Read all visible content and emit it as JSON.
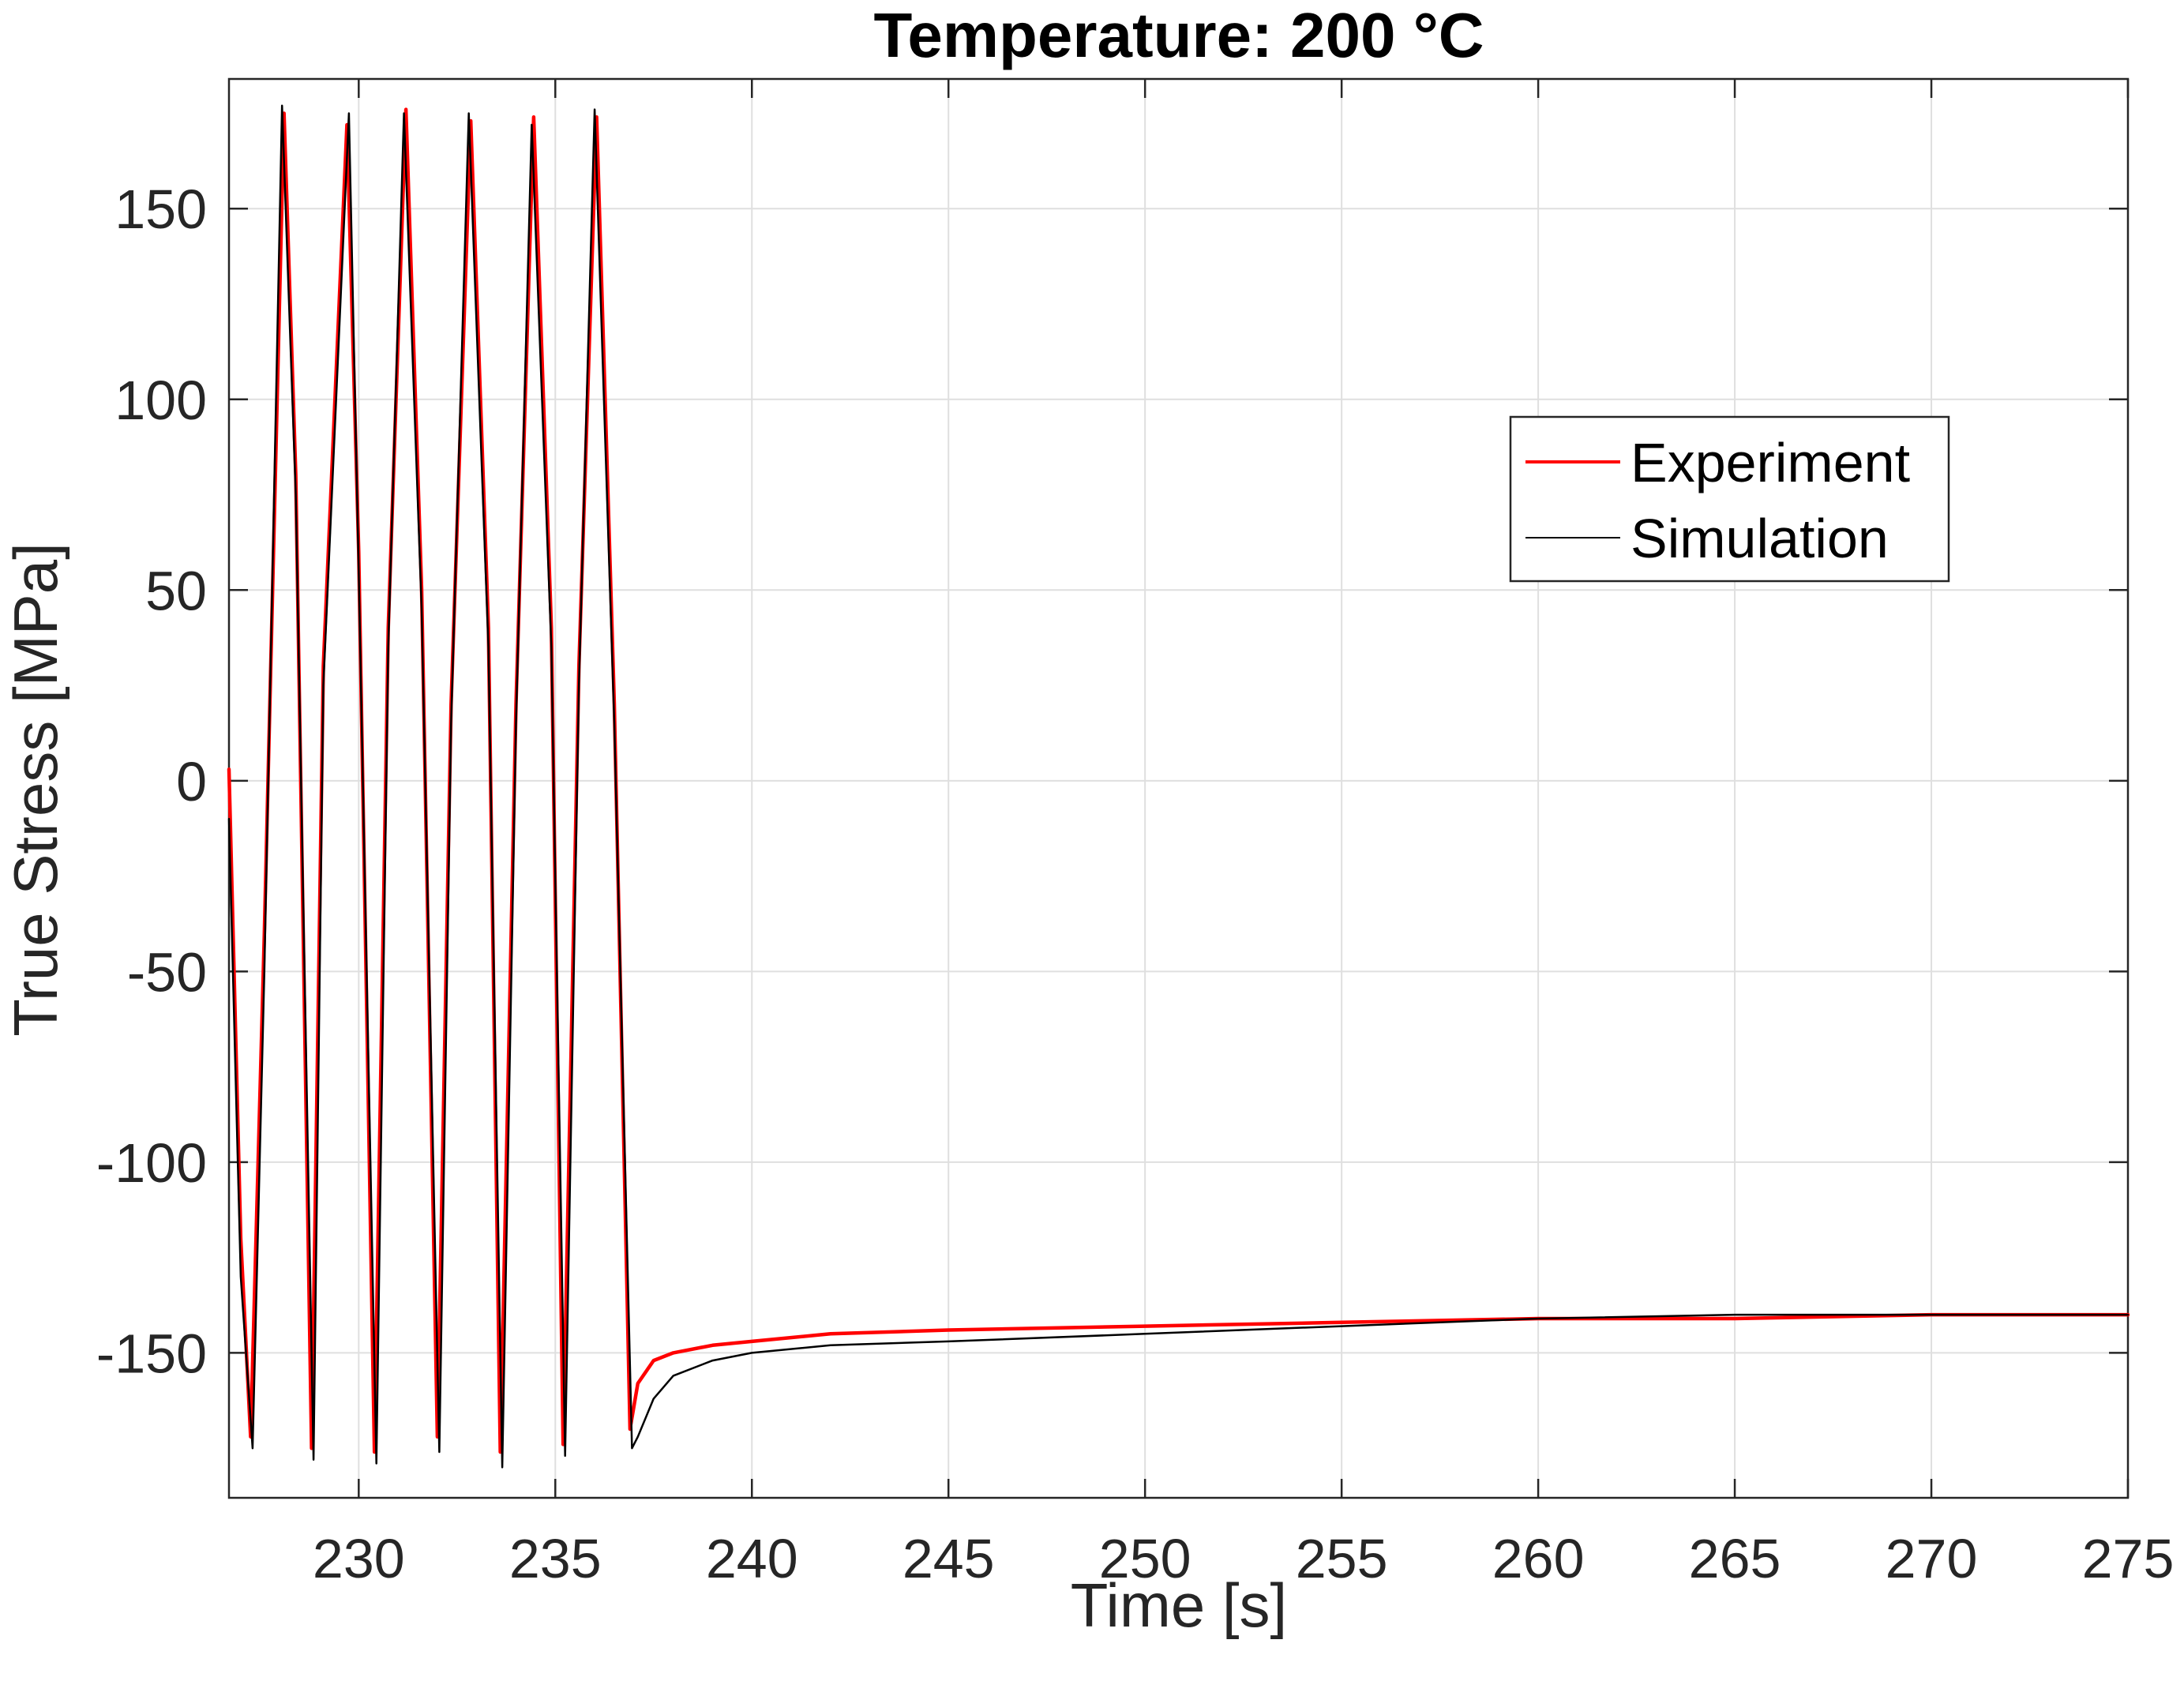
{
  "chart_data": {
    "type": "line",
    "title": "Temperature: 200 °C",
    "xlabel": "Time [s]",
    "ylabel": "True Stress [MPa]",
    "xlim": [
      226.7,
      275
    ],
    "ylim": [
      -188,
      184
    ],
    "xticks": [
      230,
      235,
      240,
      245,
      250,
      255,
      260,
      265,
      270,
      275
    ],
    "yticks": [
      -150,
      -100,
      -50,
      0,
      50,
      100,
      150
    ],
    "grid": true,
    "legend_position": "upper-right",
    "colors": {
      "experiment": "#ff0000",
      "simulation": "#000000"
    },
    "series": [
      {
        "name": "Experiment",
        "x": [
          226.7,
          227.0,
          227.25,
          227.6,
          228.1,
          228.4,
          228.8,
          229.1,
          229.7,
          230.0,
          230.4,
          230.75,
          231.2,
          231.6,
          232.0,
          232.35,
          232.85,
          233.3,
          233.6,
          234.0,
          234.45,
          234.9,
          235.2,
          235.6,
          236.05,
          236.5,
          236.9,
          237.1,
          237.5,
          238.0,
          239.0,
          240.0,
          242.0,
          245.0,
          250.0,
          255.0,
          260.0,
          265.0,
          270.0,
          275.0
        ],
        "values": [
          3,
          -120,
          -172,
          -40,
          175,
          80,
          -175,
          30,
          172,
          60,
          -176,
          40,
          176,
          50,
          -172,
          20,
          173,
          40,
          -176,
          20,
          174,
          40,
          -174,
          30,
          174,
          20,
          -170,
          -158,
          -152,
          -150,
          -148,
          -147,
          -145,
          -144,
          -143,
          -142,
          -141,
          -141,
          -140,
          -140
        ]
      },
      {
        "name": "Simulation",
        "x": [
          226.7,
          227.0,
          227.3,
          227.6,
          228.05,
          228.4,
          228.85,
          229.1,
          229.75,
          230.0,
          230.45,
          230.75,
          231.15,
          231.6,
          232.05,
          232.35,
          232.8,
          233.3,
          233.65,
          234.0,
          234.4,
          234.9,
          235.25,
          235.6,
          236.0,
          236.5,
          236.95,
          237.1,
          237.5,
          238.0,
          239.0,
          240.0,
          242.0,
          245.0,
          250.0,
          255.0,
          260.0,
          265.0,
          270.0,
          275.0
        ],
        "values": [
          -10,
          -130,
          -175,
          -50,
          177,
          75,
          -178,
          25,
          175,
          55,
          -179,
          35,
          175,
          45,
          -176,
          15,
          175,
          35,
          -180,
          15,
          172,
          35,
          -177,
          25,
          176,
          15,
          -175,
          -172,
          -162,
          -156,
          -152,
          -150,
          -148,
          -147,
          -145,
          -143,
          -141,
          -140,
          -140,
          -140
        ]
      }
    ]
  }
}
